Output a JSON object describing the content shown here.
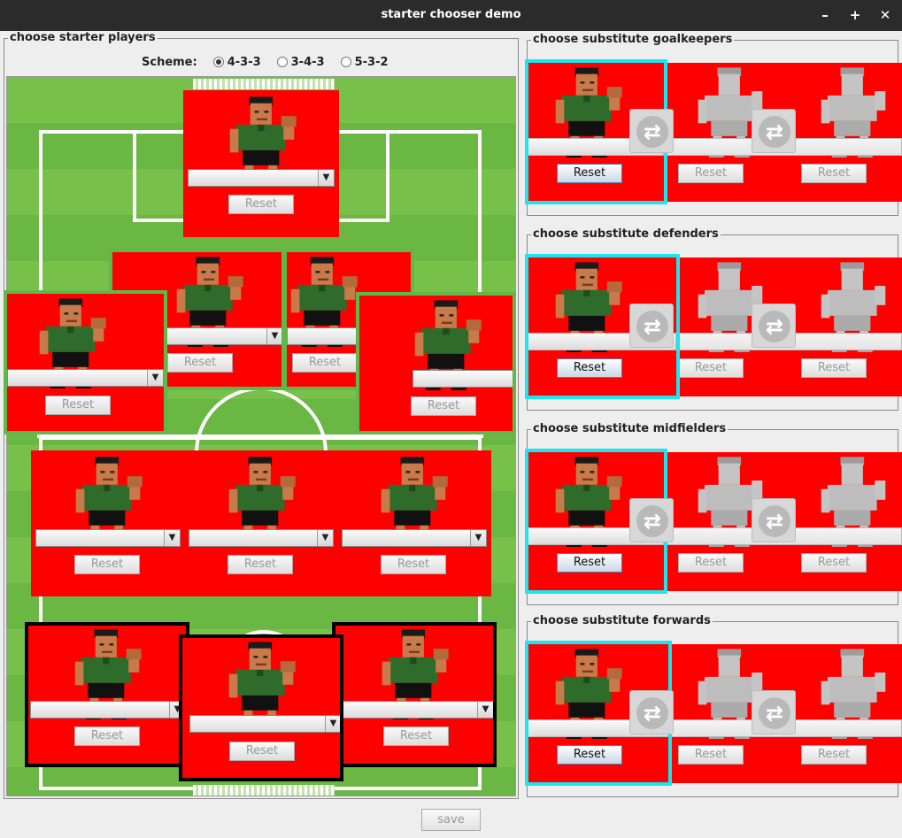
{
  "window": {
    "title": "starter chooser demo",
    "min": "–",
    "max": "+",
    "close": "✕"
  },
  "starters": {
    "legend": "choose starter players",
    "scheme_label": "Scheme:",
    "schemes": [
      {
        "label": "4-3-3",
        "selected": true
      },
      {
        "label": "3-4-3",
        "selected": false
      },
      {
        "label": "5-3-2",
        "selected": false
      }
    ]
  },
  "reset_label": "Reset",
  "subs": {
    "goalkeepers": "choose substitute goalkeepers",
    "defenders": "choose substitute defenders",
    "midfielders": "choose substitute midfielders",
    "forwards": "choose substitute forwards"
  },
  "save_label": "save",
  "colors": {
    "card": "#ff0000",
    "pitch": "#77c14b",
    "selected_border": "#19e6ee"
  },
  "icons": {
    "swap": "swap-arrows-icon",
    "dropdown": "chevron-down-icon"
  }
}
